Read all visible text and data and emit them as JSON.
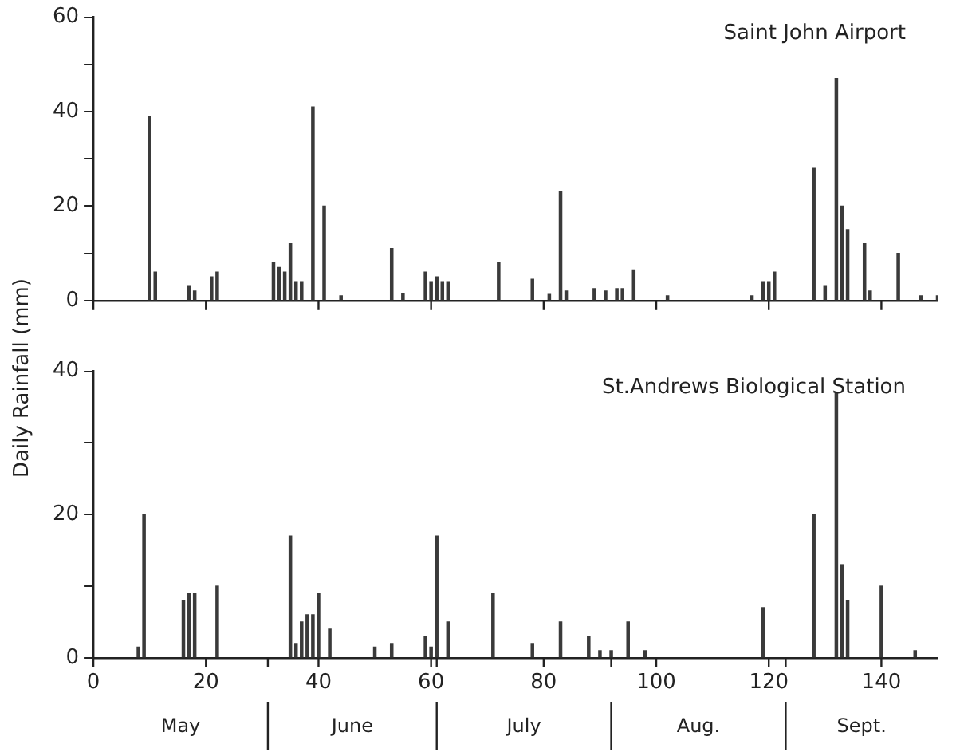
{
  "chart_data": [
    {
      "type": "bar",
      "title": "Saint John Airport",
      "ylabel": "Daily Rainfall  (mm)",
      "color": "#3a3a3a",
      "tick_labels": "y",
      "grid": false,
      "x": [
        10,
        11,
        17,
        18,
        21,
        22,
        32,
        33,
        34,
        35,
        36,
        37,
        39,
        41,
        44,
        53,
        55,
        59,
        60,
        61,
        62,
        63,
        72,
        78,
        81,
        83,
        84,
        89,
        91,
        93,
        94,
        96,
        102,
        117,
        119,
        120,
        121,
        128,
        130,
        132,
        133,
        134,
        137,
        138,
        143,
        147,
        150
      ],
      "values": [
        39,
        6,
        3,
        2,
        5,
        6,
        8,
        7,
        6,
        12,
        4,
        4,
        41,
        20,
        1,
        11,
        1.5,
        6,
        4,
        5,
        4,
        4,
        8,
        4.5,
        1.3,
        23,
        2,
        2.5,
        2,
        2.5,
        2.5,
        6.5,
        1,
        1,
        4,
        4,
        6,
        28,
        3,
        47,
        20,
        15,
        12,
        2,
        10,
        1,
        1
      ],
      "xlim": [
        0,
        150
      ],
      "xticks": [
        0,
        20,
        40,
        60,
        80,
        100,
        120,
        140
      ],
      "ylim": [
        0,
        60
      ],
      "yticks": [
        0,
        {
          "value": 10,
          "label": null
        },
        20,
        {
          "value": 30,
          "label": null
        },
        40,
        {
          "value": 50,
          "label": null
        },
        60
      ]
    },
    {
      "type": "bar",
      "title": "St.Andrews Biological Station",
      "color": "#3a3a3a",
      "grid": false,
      "x": [
        8,
        9,
        16,
        17,
        18,
        22,
        35,
        36,
        37,
        38,
        39,
        40,
        42,
        50,
        53,
        59,
        60,
        61,
        63,
        71,
        78,
        83,
        88,
        90,
        92,
        95,
        98,
        119,
        128,
        132,
        133,
        134,
        140,
        146
      ],
      "values": [
        1.5,
        20,
        8,
        9,
        9,
        10,
        17,
        2,
        5,
        6,
        6,
        9,
        4,
        1.5,
        2,
        3,
        1.5,
        17,
        5,
        9,
        2,
        5,
        3,
        1,
        1,
        5,
        1,
        7,
        20,
        37,
        13,
        8,
        10,
        1
      ],
      "xlim": [
        0,
        150
      ],
      "xticks": [
        0,
        20,
        {
          "value": 31,
          "label": null
        },
        40,
        60,
        {
          "value": 61,
          "label": null
        },
        80,
        {
          "value": 92,
          "label": null
        },
        100,
        120,
        {
          "value": 123,
          "label": null
        },
        140
      ],
      "ylim": [
        0,
        40
      ],
      "yticks": [
        0,
        {
          "value": 10,
          "label": null
        },
        20,
        {
          "value": 30,
          "label": null
        },
        40
      ],
      "annotations": [
        "May",
        "June",
        "July",
        "Aug.",
        "Sept."
      ]
    }
  ]
}
